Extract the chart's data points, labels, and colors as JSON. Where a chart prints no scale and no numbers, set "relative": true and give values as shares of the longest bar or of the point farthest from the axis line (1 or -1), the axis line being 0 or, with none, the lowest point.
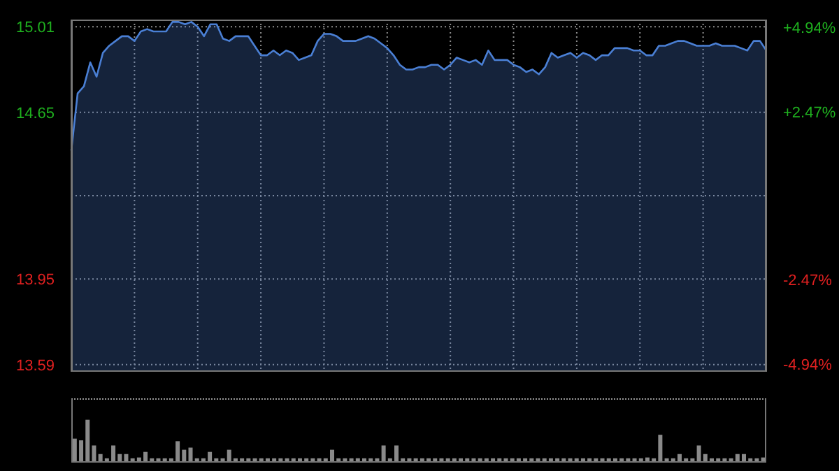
{
  "chart_data": [
    {
      "type": "area",
      "categories": [
        null,
        null,
        null,
        null,
        null,
        null,
        null,
        null,
        null,
        null,
        null,
        null,
        null,
        null,
        null,
        null,
        null,
        null,
        null,
        null,
        null,
        null,
        null,
        null,
        null,
        null,
        null,
        null,
        null,
        null,
        null,
        null,
        null,
        null,
        null,
        null,
        null,
        null,
        null,
        null,
        null,
        null,
        null,
        null,
        null,
        null,
        null,
        null,
        null,
        null,
        null,
        null,
        null,
        null,
        null,
        null,
        null,
        null,
        null,
        null,
        null,
        null,
        null,
        null,
        null,
        null,
        null,
        null,
        null,
        null,
        null,
        null,
        null,
        null,
        null,
        null,
        null,
        null,
        null,
        null,
        null,
        null,
        null,
        null,
        null,
        null,
        null,
        null,
        null,
        null,
        null,
        null,
        null,
        null,
        null,
        null,
        null,
        null,
        null,
        null,
        null,
        null,
        null,
        null,
        null,
        null,
        null,
        null,
        null,
        null,
        null
      ],
      "series": [
        {
          "color": "#4a7fd4",
          "values": [
            14.49,
            14.73,
            14.76,
            14.86,
            14.8,
            14.9,
            14.93,
            14.95,
            14.97,
            14.97,
            14.95,
            14.99,
            15.0,
            14.99,
            14.99,
            14.99,
            15.03,
            15.03,
            15.02,
            15.03,
            15.01,
            14.97,
            15.02,
            15.02,
            14.96,
            14.95,
            14.97,
            14.97,
            14.97,
            14.93,
            14.89,
            14.89,
            14.91,
            14.89,
            14.91,
            14.9,
            14.87,
            14.88,
            14.89,
            14.95,
            14.98,
            14.98,
            14.97,
            14.95,
            14.95,
            14.95,
            14.96,
            14.97,
            14.96,
            14.94,
            14.92,
            14.89,
            14.85,
            14.83,
            14.83,
            14.84,
            14.84,
            14.85,
            14.85,
            14.83,
            14.85,
            14.88,
            14.87,
            14.86,
            14.87,
            14.85,
            14.91,
            14.87,
            14.87,
            14.87,
            14.85,
            14.84,
            14.82,
            14.83,
            14.81,
            14.84,
            14.9,
            14.88,
            14.89,
            14.9,
            14.88,
            14.9,
            14.89,
            14.87,
            14.89,
            14.89,
            14.92,
            14.92,
            14.92,
            14.91,
            14.91,
            14.89,
            14.89,
            14.93,
            14.93,
            14.94,
            14.95,
            14.95,
            14.94,
            14.93,
            14.93,
            14.93,
            14.94,
            14.93,
            14.93,
            14.93,
            14.92,
            14.91,
            14.95,
            14.95,
            14.91
          ]
        }
      ],
      "ylim": [
        13.56,
        15.04
      ],
      "yticks": [
        13.59,
        13.95,
        {
          "value": 14.3,
          "label": null
        },
        14.65,
        15.01
      ],
      "y2lim": [
        -5.17,
        5.17
      ],
      "y2ticks": [
        {
          "value": -4.94,
          "label": "-4.94%"
        },
        {
          "value": -2.47,
          "label": "-2.47%"
        },
        {
          "value": 0,
          "label": null
        },
        {
          "value": 2.47,
          "label": "+2.47%"
        },
        {
          "value": 4.94,
          "label": "+4.94%"
        }
      ],
      "grid": true,
      "tick_labels": "y"
    },
    {
      "type": "bar",
      "relative": true,
      "color": "#8a8a8a",
      "categories": [
        null,
        null,
        null,
        null,
        null,
        null,
        null,
        null,
        null,
        null,
        null,
        null,
        null,
        null,
        null,
        null,
        null,
        null,
        null,
        null,
        null,
        null,
        null,
        null,
        null,
        null,
        null,
        null,
        null,
        null,
        null,
        null,
        null,
        null,
        null,
        null,
        null,
        null,
        null,
        null,
        null,
        null,
        null,
        null,
        null,
        null,
        null,
        null,
        null,
        null,
        null,
        null,
        null,
        null,
        null,
        null,
        null,
        null,
        null,
        null,
        null,
        null,
        null,
        null,
        null,
        null,
        null,
        null,
        null,
        null,
        null,
        null,
        null,
        null,
        null,
        null,
        null,
        null,
        null,
        null,
        null,
        null,
        null,
        null,
        null,
        null,
        null,
        null,
        null,
        null,
        null,
        null,
        null,
        null,
        null,
        null,
        null,
        null,
        null,
        null,
        null,
        null,
        null,
        null,
        null,
        null,
        null,
        null
      ],
      "values": [
        0.56,
        0.52,
        1.0,
        0.4,
        0.2,
        0.1,
        0.4,
        0.2,
        0.2,
        0.1,
        0.12,
        0.25,
        0.1,
        0.1,
        0.1,
        0.1,
        0.5,
        0.3,
        0.35,
        0.1,
        0.1,
        0.25,
        0.1,
        0.1,
        0.3,
        0.1,
        0.1,
        0.1,
        0.1,
        0.1,
        0.1,
        0.1,
        0.1,
        0.1,
        0.1,
        0.1,
        0.1,
        0.1,
        0.1,
        0.1,
        0.3,
        0.1,
        0.1,
        0.1,
        0.1,
        0.1,
        0.1,
        0.1,
        0.4,
        0.1,
        0.4,
        0.1,
        0.1,
        0.1,
        0.1,
        0.1,
        0.1,
        0.1,
        0.1,
        0.1,
        0.1,
        0.1,
        0.1,
        0.1,
        0.1,
        0.1,
        0.1,
        0.1,
        0.1,
        0.1,
        0.1,
        0.1,
        0.1,
        0.1,
        0.1,
        0.1,
        0.1,
        0.1,
        0.1,
        0.1,
        0.1,
        0.1,
        0.1,
        0.1,
        0.1,
        0.1,
        0.1,
        0.1,
        0.1,
        0.12,
        0.1,
        0.65,
        0.1,
        0.1,
        0.2,
        0.1,
        0.1,
        0.4,
        0.2,
        0.1,
        0.1,
        0.1,
        0.1,
        0.2,
        0.2,
        0.1,
        0.1,
        0.12
      ]
    }
  ]
}
